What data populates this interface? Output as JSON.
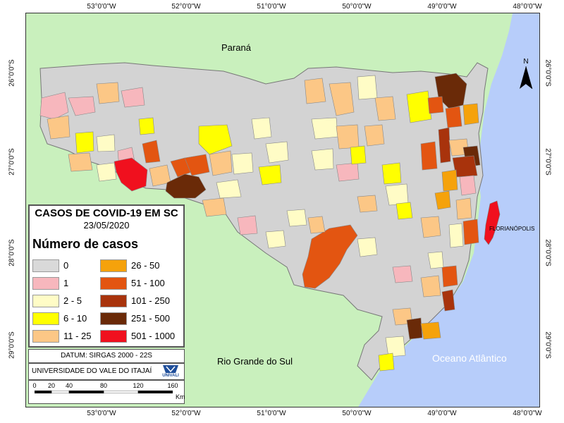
{
  "map": {
    "coords": {
      "top": [
        "53°0'0\"W",
        "52°0'0\"W",
        "51°0'0\"W",
        "50°0'0\"W",
        "49°0'0\"W",
        "48°0'0\"W"
      ],
      "bottom": [
        "53°0'0\"W",
        "52°0'0\"W",
        "51°0'0\"W",
        "50°0'0\"W",
        "49°0'0\"W",
        "48°0'0\"W"
      ],
      "left": [
        "26°0'0\"S",
        "27°0'0\"S",
        "28°0'0\"S",
        "29°0'0\"S"
      ],
      "right": [
        "26°0'0\"S",
        "27°0'0\"S",
        "28°0'0\"S",
        "29°0'0\"S"
      ]
    },
    "regions": {
      "north": "Paraná",
      "south": "Rio Grande do Sul",
      "ocean": "Oceano Atlântico"
    },
    "city": "FLORIANÓPOLIS",
    "north_arrow": "N",
    "colors": {
      "land": "#c9f0bd",
      "ocean": "#b7cdfa"
    }
  },
  "legend": {
    "title": "CASOS DE COVID-19 EM SC",
    "date": "23/05/2020",
    "subtitle": "Número de casos",
    "classes": [
      {
        "label": "0",
        "color": "#d9d9d9"
      },
      {
        "label": "1",
        "color": "#f7b7bd"
      },
      {
        "label": "2 - 5",
        "color": "#fffcc6"
      },
      {
        "label": "6 - 10",
        "color": "#ffff00"
      },
      {
        "label": "11 - 25",
        "color": "#fcc786"
      },
      {
        "label": "26 - 50",
        "color": "#f5a20b"
      },
      {
        "label": "51 - 100",
        "color": "#e35511"
      },
      {
        "label": "101 - 250",
        "color": "#a8330c"
      },
      {
        "label": "251 - 500",
        "color": "#6a2a08"
      },
      {
        "label": "501 - 1000",
        "color": "#f0101e"
      }
    ]
  },
  "datum": "DATUM: SIRGAS 2000 - 22S",
  "institution": "UNIVERSIDADE DO VALE DO ITAJAÍ",
  "logo_text": "UNIVALI",
  "scale": {
    "ticks": [
      "0",
      "20",
      "40",
      "80",
      "120",
      "160"
    ],
    "unit": "Km"
  }
}
